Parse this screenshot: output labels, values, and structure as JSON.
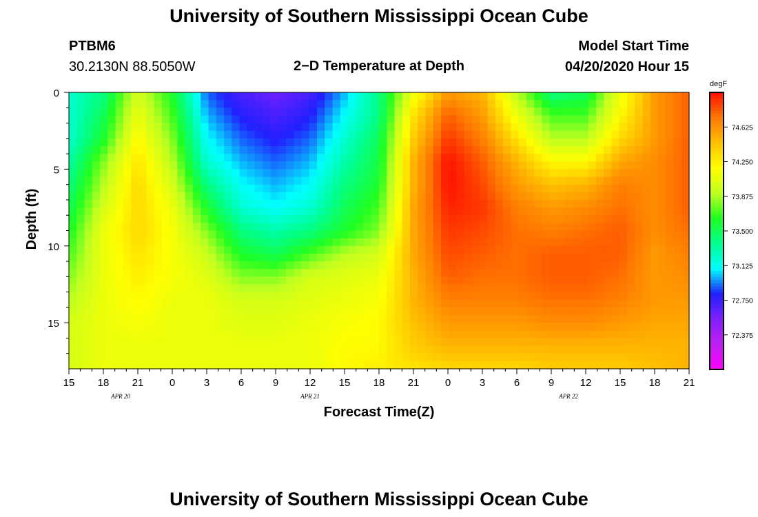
{
  "page": {
    "title": "University of Southern Mississippi Ocean Cube",
    "footer_title": "University of Southern Mississippi Ocean Cube",
    "station_id": "PTBM6",
    "station_location": "30.2130N 88.5050W",
    "plot_title": "2−D Temperature at Depth",
    "model_start_label": "Model Start Time",
    "model_start_value": "04/20/2020 Hour 15"
  },
  "colors": {
    "scale": [
      "#ff00ff",
      "#c020f0",
      "#8020ff",
      "#2020ff",
      "#00ffff",
      "#00ff90",
      "#20ff20",
      "#c0ff20",
      "#ffff00",
      "#ffc000",
      "#ff7800",
      "#ff1000"
    ]
  },
  "chart_data": {
    "type": "heatmap",
    "title": "2−D Temperature at Depth",
    "xlabel": "Forecast Time(Z)",
    "ylabel": "Depth (ft)",
    "x_range_hours": [
      0,
      54
    ],
    "y_range_ft": [
      0,
      18
    ],
    "y_ticks": [
      0,
      5,
      10,
      15
    ],
    "y_tick_labels": [
      "0",
      "5",
      "10",
      "15"
    ],
    "x_tick_labels": [
      "15",
      "18",
      "21",
      "0",
      "3",
      "6",
      "9",
      "12",
      "15",
      "18",
      "21",
      "0",
      "3",
      "6",
      "9",
      "12",
      "15",
      "18",
      "21"
    ],
    "date_labels": [
      {
        "text": "APR 20",
        "hour": 4.5
      },
      {
        "text": "APR 21",
        "hour": 21
      },
      {
        "text": "APR 22",
        "hour": 43.5
      }
    ],
    "colorbar": {
      "units": "degF",
      "min": 72.0,
      "max": 75.0,
      "tick_values": [
        74.625,
        74.25,
        73.875,
        73.5,
        73.125,
        72.75,
        72.375
      ],
      "tick_labels": [
        "74.625",
        "74.250",
        "73.875",
        "73.500",
        "73.125",
        "72.750",
        "72.375"
      ]
    },
    "depth_levels_ft": [
      0,
      1.5,
      3,
      4.5,
      6,
      7.5,
      9,
      10.5,
      12,
      13.5,
      15,
      16.5,
      18
    ],
    "profile_hours": [
      0,
      3,
      6,
      9,
      12,
      15,
      18,
      21,
      24,
      27,
      30,
      33,
      36,
      39,
      42,
      45,
      48,
      51,
      54
    ],
    "temperature_profiles_degF": [
      [
        73.2,
        73.2,
        73.2,
        73.3,
        73.4,
        73.5,
        73.6,
        73.7,
        73.8,
        73.9,
        74.0,
        74.0,
        74.0
      ],
      [
        73.4,
        73.5,
        73.6,
        73.8,
        73.9,
        74.0,
        74.1,
        74.1,
        74.1,
        74.1,
        74.1,
        74.1,
        74.1
      ],
      [
        74.0,
        74.1,
        74.2,
        74.3,
        74.35,
        74.35,
        74.35,
        74.3,
        74.25,
        74.2,
        74.15,
        74.1,
        74.1
      ],
      [
        73.6,
        73.7,
        73.8,
        73.9,
        74.0,
        74.1,
        74.15,
        74.15,
        74.15,
        74.1,
        74.1,
        74.1,
        74.1
      ],
      [
        72.9,
        73.0,
        73.1,
        73.2,
        73.4,
        73.6,
        73.8,
        73.95,
        74.05,
        74.1,
        74.1,
        74.1,
        74.1
      ],
      [
        72.7,
        72.8,
        72.9,
        73.0,
        73.1,
        73.2,
        73.4,
        73.6,
        73.8,
        74.0,
        74.05,
        74.1,
        74.1
      ],
      [
        72.6,
        72.7,
        72.8,
        72.9,
        73.0,
        73.1,
        73.3,
        73.5,
        73.8,
        74.0,
        74.05,
        74.1,
        74.1
      ],
      [
        72.7,
        72.8,
        72.9,
        73.0,
        73.1,
        73.2,
        73.4,
        73.7,
        74.0,
        74.05,
        74.1,
        74.1,
        74.1
      ],
      [
        73.0,
        73.1,
        73.2,
        73.3,
        73.4,
        73.5,
        73.6,
        73.9,
        74.05,
        74.1,
        74.15,
        74.2,
        74.2
      ],
      [
        73.4,
        73.4,
        73.5,
        73.55,
        73.6,
        73.7,
        73.8,
        74.0,
        74.1,
        74.15,
        74.2,
        74.2,
        74.25
      ],
      [
        74.1,
        74.3,
        74.4,
        74.5,
        74.5,
        74.55,
        74.55,
        74.55,
        74.5,
        74.5,
        74.45,
        74.4,
        74.3
      ],
      [
        74.6,
        74.8,
        74.9,
        75.0,
        75.0,
        74.95,
        74.9,
        74.85,
        74.8,
        74.7,
        74.6,
        74.5,
        74.35
      ],
      [
        74.5,
        74.6,
        74.7,
        74.8,
        74.85,
        74.9,
        74.85,
        74.8,
        74.75,
        74.7,
        74.6,
        74.5,
        74.35
      ],
      [
        73.9,
        74.1,
        74.3,
        74.5,
        74.6,
        74.7,
        74.75,
        74.75,
        74.75,
        74.7,
        74.6,
        74.5,
        74.35
      ],
      [
        73.4,
        73.7,
        73.9,
        74.2,
        74.45,
        74.6,
        74.7,
        74.8,
        74.8,
        74.75,
        74.65,
        74.5,
        74.4
      ],
      [
        73.5,
        73.7,
        73.9,
        74.2,
        74.5,
        74.65,
        74.75,
        74.8,
        74.8,
        74.75,
        74.65,
        74.5,
        74.4
      ],
      [
        74.1,
        74.2,
        74.35,
        74.55,
        74.7,
        74.75,
        74.8,
        74.8,
        74.75,
        74.7,
        74.6,
        74.5,
        74.4
      ],
      [
        74.6,
        74.6,
        74.6,
        74.65,
        74.65,
        74.65,
        74.65,
        74.6,
        74.6,
        74.6,
        74.55,
        74.5,
        74.45
      ],
      [
        74.8,
        74.8,
        74.8,
        74.8,
        74.8,
        74.8,
        74.75,
        74.7,
        74.65,
        74.6,
        74.55,
        74.5,
        74.5
      ]
    ]
  }
}
